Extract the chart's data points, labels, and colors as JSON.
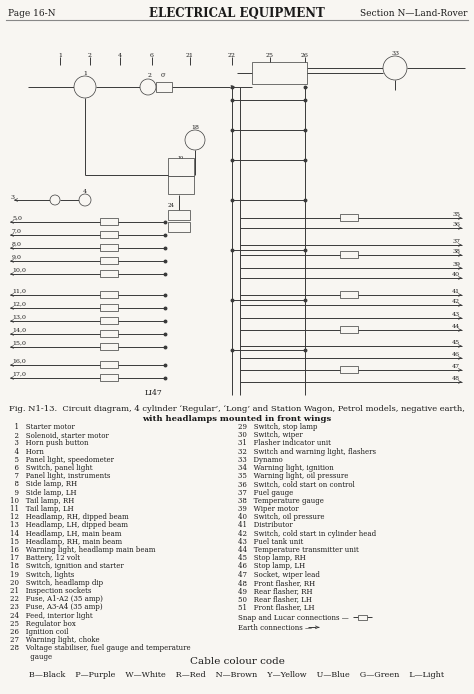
{
  "page_label": "Page 16-N",
  "title": "ELECTRICAL EQUIPMENT",
  "section_label": "Section N—Land-Rover",
  "fig_caption_line1": "Fig. N1-13.  Circuit diagram, 4 cylinder ‘Regular’, ‘Long’ and Station Wagon, Petrol models, negative earth,",
  "fig_caption_line2": "with headlamps mounted in front wings",
  "items_left": [
    "  1   Starter motor",
    "  2   Solenoid, starter motor",
    "  3   Horn push button",
    "  4   Horn",
    "  5   Panel light, speedometer",
    "  6   Switch, panel light",
    "  7   Panel light, instruments",
    "  8   Side lamp, RH",
    "  9   Side lamp, LH",
    "10   Tail lamp, RH",
    "11   Tail lamp, LH",
    "12   Headlamp, RH, dipped beam",
    "13   Headlamp, LH, dipped beam",
    "14   Headlamp, LH, main beam",
    "15   Headlamp, RH, main beam",
    "16   Warning light, headlamp main beam",
    "17   Battery, 12 volt",
    "18   Switch, ignition and starter",
    "19   Switch, lights",
    "20   Switch, headlamp dip",
    "21   Inspection sockets",
    "22   Fuse, A1-A2 (35 amp)",
    "23   Fuse, A3-A4 (35 amp)",
    "24   Feed, interior light",
    "25   Regulator box",
    "26   Ignition coil",
    "27   Warning light, choke",
    "28   Voltage stabiliser, fuel gauge and temperature",
    "         gauge"
  ],
  "items_right": [
    "29   Switch, stop lamp",
    "30   Switch, wiper",
    "31   Flasher indicator unit",
    "32   Switch and warning light, flashers",
    "33   Dynamo",
    "34   Warning light, ignition",
    "35   Warning light, oil pressure",
    "36   Switch, cold start on control",
    "37   Fuel gauge",
    "38   Temperature gauge",
    "39   Wiper motor",
    "40   Switch, oil pressure",
    "41   Distributor",
    "42   Switch, cold start in cylinder head",
    "43   Fuel tank unit",
    "44   Temperature transmitter unit",
    "45   Stop lamp, RH",
    "46   Stop lamp, LH",
    "47   Socket, wiper lead",
    "48   Front flasher, RH",
    "49   Rear flasher, RH",
    "50   Rear flasher, LH",
    "51   Front flasher, LH"
  ],
  "snap_lucars": "Snap and Lucar connections —",
  "earth_connections": "Earth connections —",
  "cable_title": "Cable colour code",
  "cable_codes": "B—Black    P—Purple    W—White    R—Red    N—Brown    Y—Yellow    U—Blue    G—Green    L—Light",
  "bg_color": "#f8f6f2",
  "text_color": "#1a1a1a",
  "diag_color": "#3a3a3a",
  "header_line_color": "#888888"
}
